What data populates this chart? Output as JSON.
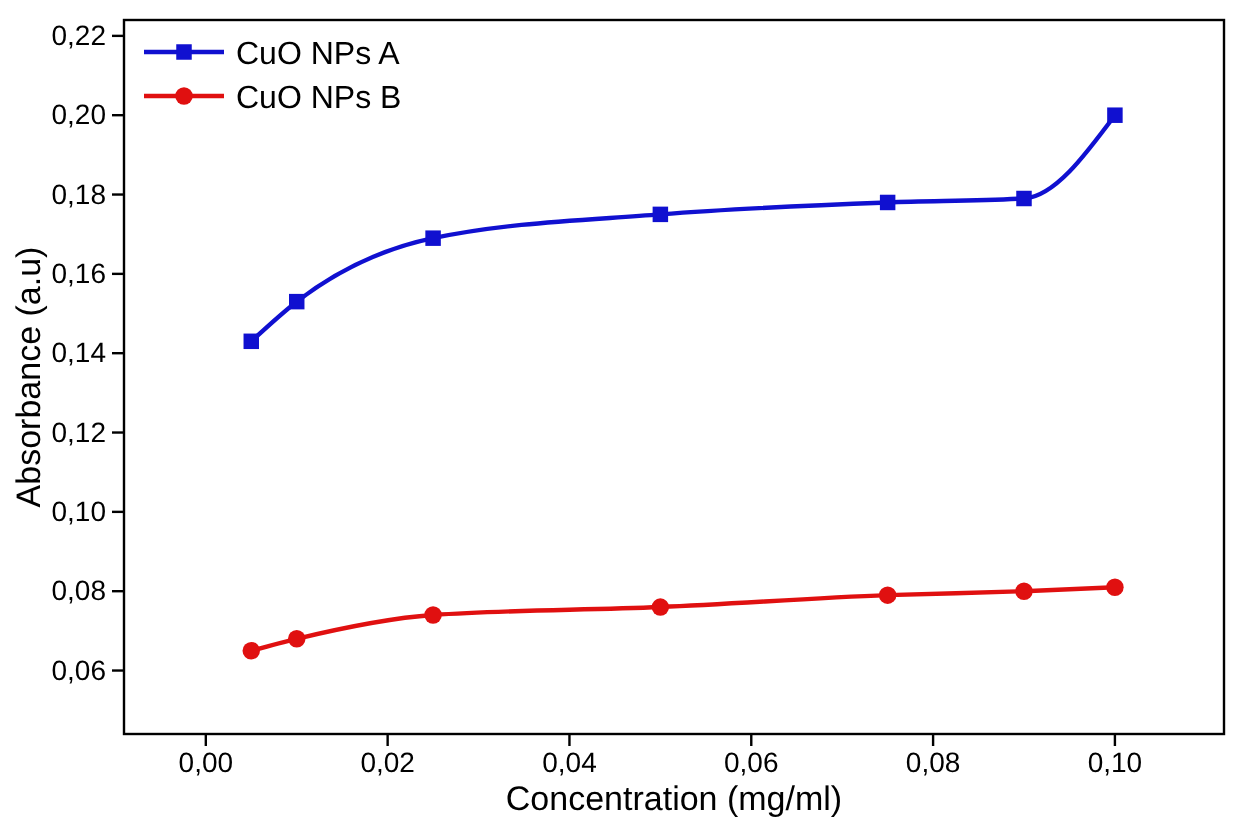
{
  "chart_data": {
    "type": "line",
    "xlabel": "Concentration (mg/ml)",
    "ylabel": "Absorbance (a.u)",
    "x": [
      0.005,
      0.01,
      0.025,
      0.05,
      0.075,
      0.09,
      0.1
    ],
    "series": [
      {
        "name": "CuO NPs A",
        "color": "#1010d0",
        "marker": "square",
        "values": [
          0.143,
          0.153,
          0.169,
          0.175,
          0.178,
          0.179,
          0.2
        ]
      },
      {
        "name": "CuO NPs B",
        "color": "#e01010",
        "marker": "circle",
        "values": [
          0.065,
          0.068,
          0.074,
          0.076,
          0.079,
          0.08,
          0.081
        ]
      }
    ],
    "xlim": [
      -0.009,
      0.112
    ],
    "ylim": [
      0.044,
      0.224
    ],
    "xticks": [
      {
        "value": 0,
        "label": "0,00"
      },
      {
        "value": 0.02,
        "label": "0,02"
      },
      {
        "value": 0.04,
        "label": "0,04"
      },
      {
        "value": 0.06,
        "label": "0,06"
      },
      {
        "value": 0.08,
        "label": "0,08"
      },
      {
        "value": 0.1,
        "label": "0,10"
      }
    ],
    "yticks": [
      {
        "value": 0.06,
        "label": "0,06"
      },
      {
        "value": 0.08,
        "label": "0,08"
      },
      {
        "value": 0.1,
        "label": "0,10"
      },
      {
        "value": 0.12,
        "label": "0,12"
      },
      {
        "value": 0.14,
        "label": "0,14"
      },
      {
        "value": 0.16,
        "label": "0,16"
      },
      {
        "value": 0.18,
        "label": "0,18"
      },
      {
        "value": 0.2,
        "label": "0,20"
      },
      {
        "value": 0.22,
        "label": "0,22"
      }
    ],
    "legend": "top left",
    "line_style": "solid"
  }
}
